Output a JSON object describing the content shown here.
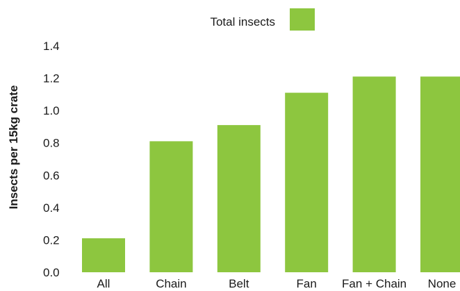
{
  "chart_data": {
    "type": "bar",
    "categories": [
      "All",
      "Chain",
      "Belt",
      "Fan",
      "Fan + Chain",
      "None"
    ],
    "series": [
      {
        "name": "Total insects",
        "values": [
          0.21,
          0.81,
          0.91,
          1.11,
          1.21,
          1.21
        ],
        "color": "#8dc63f"
      }
    ],
    "title": "",
    "xlabel": "",
    "ylabel": "Insects per 15kg crate",
    "ylim": [
      0,
      1.4
    ],
    "yticks": [
      "0.0",
      "0.2",
      "0.4",
      "0.6",
      "0.8",
      "1.0",
      "1.2",
      "1.4"
    ],
    "grid": false,
    "legend_position": "top-center"
  }
}
